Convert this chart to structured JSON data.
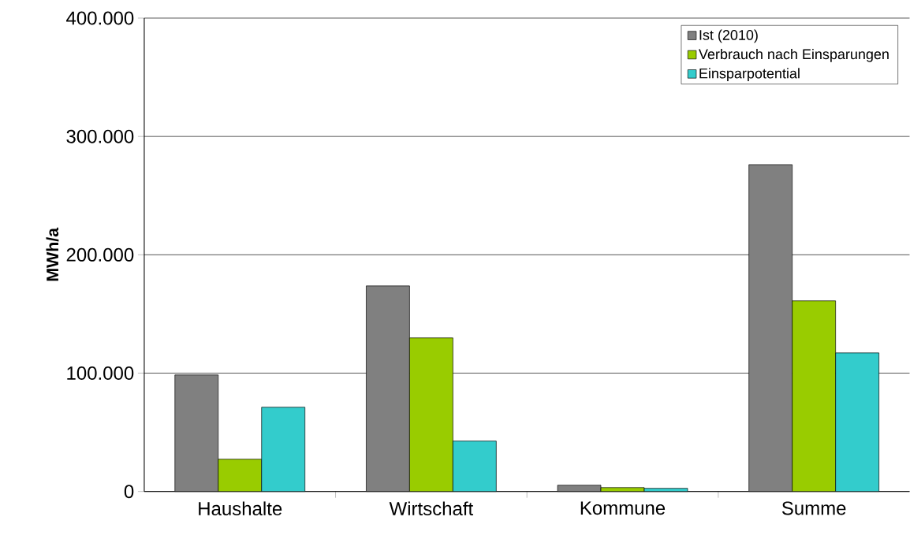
{
  "chart_data": {
    "type": "bar",
    "ylabel": "MWh/a",
    "categories": [
      "Haushalte",
      "Wirtschaft",
      "Kommune",
      "Summe"
    ],
    "series": [
      {
        "name": "Ist (2010)",
        "color": "#808080",
        "values": [
          98500,
          173700,
          5300,
          276200
        ]
      },
      {
        "name": "Verbrauch nach Einsparungen",
        "color": "#99cc00",
        "values": [
          27300,
          129800,
          3300,
          161100
        ]
      },
      {
        "name": "Einsparpotential",
        "color": "#33cccc",
        "values": [
          71200,
          42600,
          2700,
          117100
        ]
      }
    ],
    "ylim": [
      0,
      400000
    ],
    "yticks": [
      0,
      {
        "value": 100000,
        "label": "100.000"
      },
      {
        "value": 200000,
        "label": "200.000"
      },
      {
        "value": 300000,
        "label": "300.000"
      },
      {
        "value": 400000,
        "label": "400.000"
      }
    ],
    "grid": "y",
    "legend": "top right"
  }
}
